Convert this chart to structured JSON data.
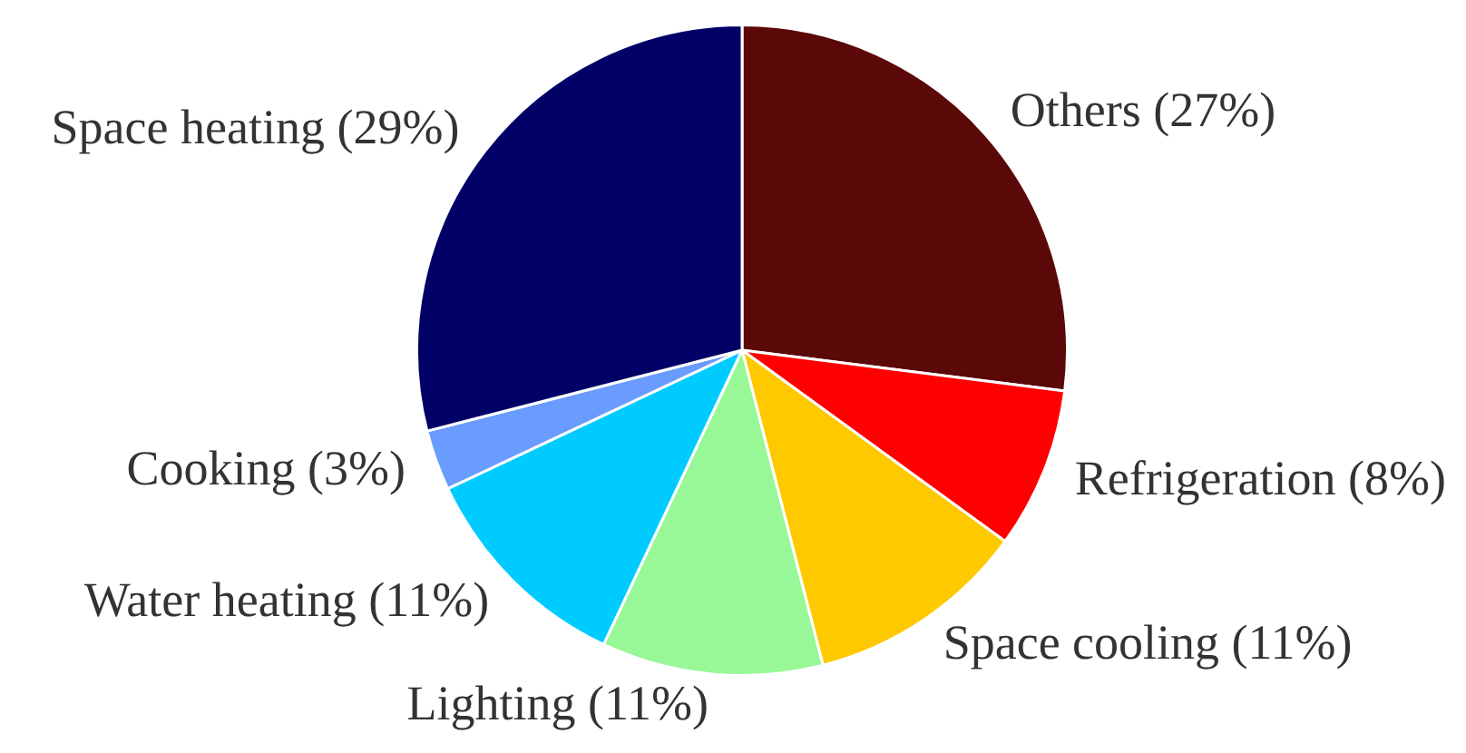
{
  "chart_data": {
    "type": "pie",
    "categories": [
      "Others (27%)",
      "Refrigeration (8%)",
      "Space cooling (11%)",
      "Lighting (11%)",
      "Water heating (11%)",
      "Cooking (3%)",
      "Space heating (29%)"
    ],
    "values": [
      27,
      8,
      11,
      11,
      11,
      3,
      29
    ],
    "colors": [
      "#5b0808",
      "#ff0000",
      "#ffc900",
      "#98f898",
      "#00cbff",
      "#6a9bff",
      "#000066"
    ]
  }
}
